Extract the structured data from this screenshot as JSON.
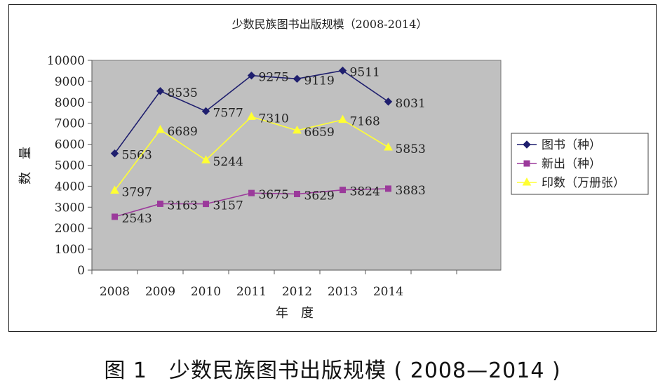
{
  "chart_data": {
    "type": "line",
    "title": "少数民族图书出版规模（2008-2014）",
    "xlabel": "年　度",
    "ylabel": "数　量",
    "categories": [
      "2008",
      "2009",
      "2010",
      "2011",
      "2012",
      "2013",
      "2014"
    ],
    "y_ticks": [
      "0",
      "1000",
      "2000",
      "3000",
      "4000",
      "5000",
      "6000",
      "7000",
      "8000",
      "9000",
      "10000"
    ],
    "ylim": [
      0,
      10000
    ],
    "grid": false,
    "legend_position": "right",
    "series": [
      {
        "name": "图书（种）",
        "color": "#1f1f6e",
        "marker": "diamond",
        "values": [
          5563,
          8535,
          7577,
          9275,
          9119,
          9511,
          8031
        ],
        "labels": [
          "5563",
          "8535",
          "7577",
          "9275",
          "9119",
          "9511",
          "8031"
        ]
      },
      {
        "name": "新出（种）",
        "color": "#9b3a9b",
        "marker": "square",
        "values": [
          2543,
          3163,
          3157,
          3675,
          3629,
          3824,
          3883
        ],
        "labels": [
          "2543",
          "3163",
          "3157",
          "3675",
          "3629",
          "3824",
          "3883"
        ]
      },
      {
        "name": "印数（万册张）",
        "color": "#ffff33",
        "marker": "triangle",
        "values": [
          3797,
          6689,
          5244,
          7310,
          6659,
          7168,
          5853
        ],
        "labels": [
          "3797",
          "6689",
          "5244",
          "7310",
          "6659",
          "7168",
          "5853"
        ]
      }
    ],
    "plot_background": "#c0c0c0"
  },
  "caption": "图 1　少数民族图书出版规模 ( 2008—2014 )"
}
